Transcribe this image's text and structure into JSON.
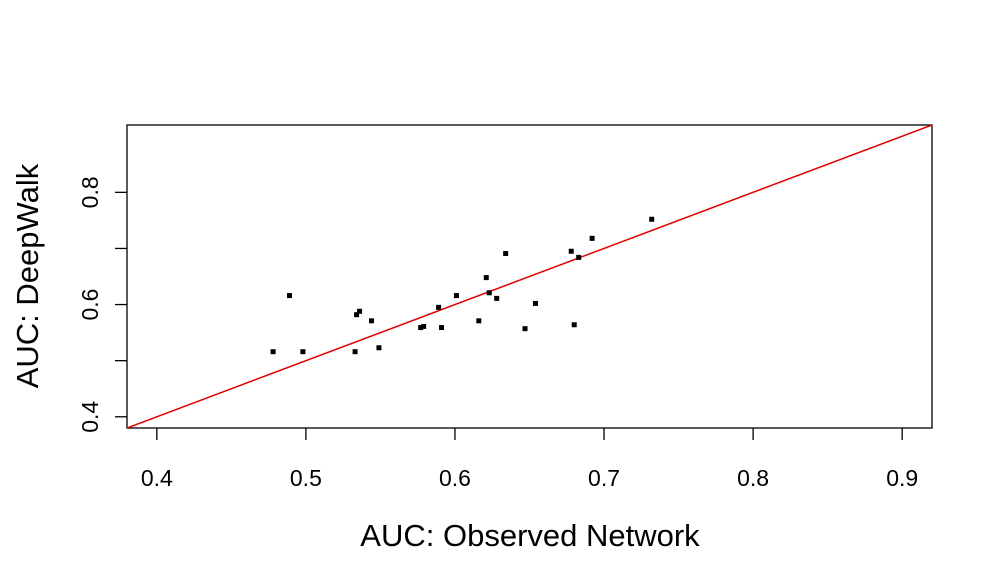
{
  "chart_data": {
    "type": "scatter",
    "x_label": "AUC: Observed Network",
    "y_label": "AUC: DeepWalk",
    "x": [
      0.478,
      0.489,
      0.498,
      0.533,
      0.534,
      0.536,
      0.544,
      0.549,
      0.577,
      0.579,
      0.589,
      0.591,
      0.601,
      0.616,
      0.621,
      0.623,
      0.628,
      0.634,
      0.647,
      0.654,
      0.678,
      0.68,
      0.683,
      0.692,
      0.732
    ],
    "series": [
      {
        "color": "#000000",
        "values": [
          0.516,
          0.616,
          0.516,
          0.516,
          0.582,
          0.588,
          0.571,
          0.523,
          0.559,
          0.561,
          0.595,
          0.559,
          0.616,
          0.571,
          0.648,
          0.621,
          0.611,
          0.691,
          0.557,
          0.602,
          0.695,
          0.564,
          0.684,
          0.718,
          0.752
        ]
      }
    ],
    "xlim": [
      0.38,
      0.92
    ],
    "ylim": [
      0.38,
      0.92
    ],
    "xticks": [
      0.4,
      0.5,
      0.6,
      0.7,
      0.8,
      0.9
    ],
    "yticks": [
      0.4,
      {
        "value": 0.5,
        "label": null
      },
      0.6,
      {
        "value": 0.7,
        "label": null
      },
      0.8
    ],
    "reference_line": {
      "slope": 1,
      "intercept": 0,
      "color": "#e00000"
    }
  }
}
